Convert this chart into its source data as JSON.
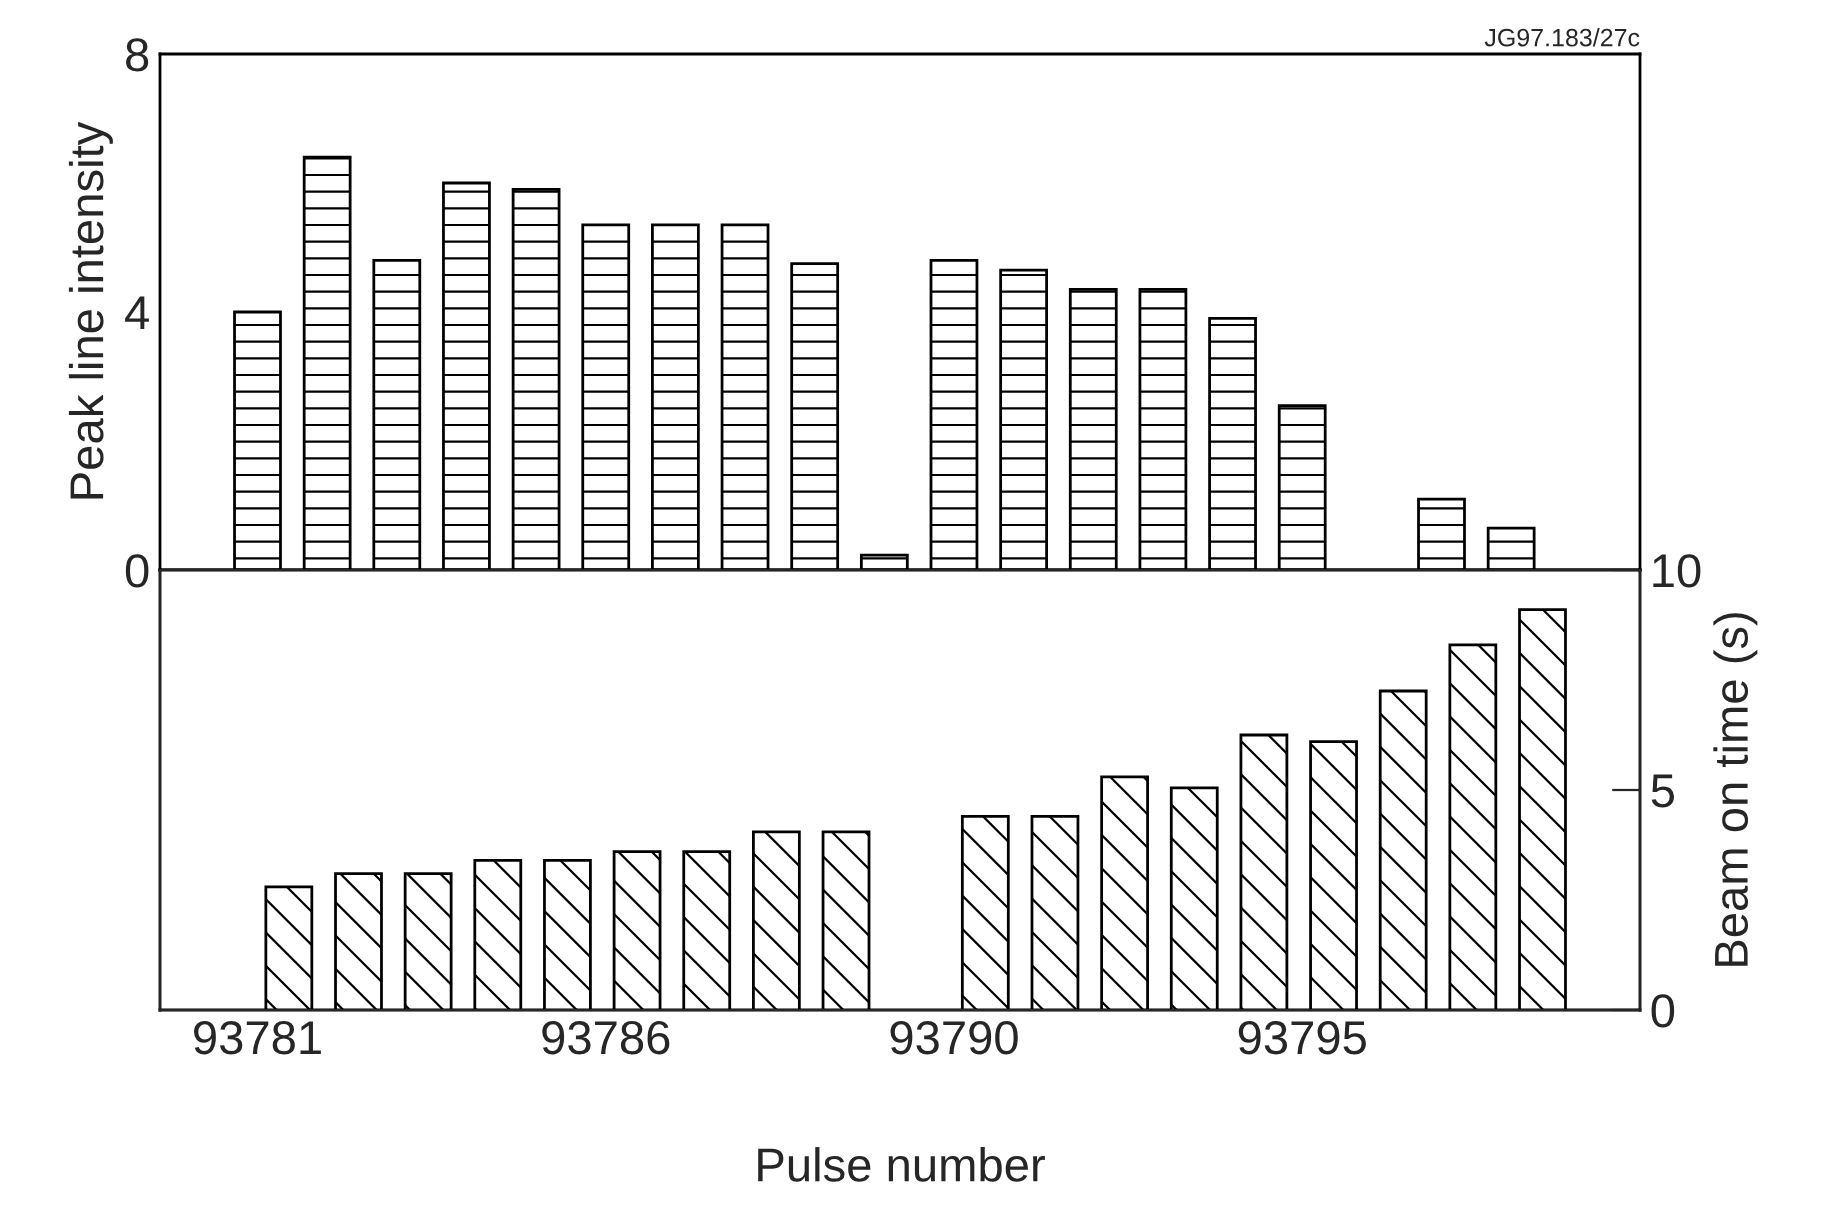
{
  "chart_data": [
    {
      "type": "bar",
      "ylabel": "Peak line intensity",
      "annotations": [
        "JG97.183/27c"
      ],
      "categories": [
        "93781",
        null,
        null,
        null,
        null,
        "93786",
        null,
        null,
        null,
        null,
        "93790",
        null,
        null,
        null,
        null,
        "93795",
        null,
        null,
        null
      ],
      "values": [
        4.0,
        6.4,
        4.8,
        6.0,
        5.9,
        5.35,
        5.35,
        5.35,
        4.75,
        0.23,
        4.8,
        4.65,
        4.35,
        4.35,
        3.9,
        2.55,
        null,
        1.1,
        0.65
      ],
      "color": "#000000",
      "ylim": [
        0,
        8
      ],
      "yticks": [
        0,
        4,
        8
      ],
      "tick_labels": "y"
    },
    {
      "type": "bar",
      "xlabel": "Pulse number",
      "y2label": "Beam on time (s)",
      "categories": [
        "93781",
        null,
        null,
        null,
        null,
        "93786",
        null,
        null,
        null,
        null,
        "93790",
        null,
        null,
        null,
        null,
        "93795",
        null,
        null,
        null
      ],
      "series": [
        {
          "axis": "y2",
          "color": "#000000",
          "values": [
            2.8,
            3.1,
            3.1,
            3.4,
            3.4,
            3.6,
            3.6,
            4.05,
            4.05,
            null,
            4.4,
            4.4,
            5.3,
            5.05,
            6.25,
            6.1,
            7.25,
            8.3,
            9.1
          ]
        }
      ],
      "y2lim": [
        0,
        10
      ],
      "y2ticks": [
        0,
        5,
        10
      ]
    }
  ]
}
